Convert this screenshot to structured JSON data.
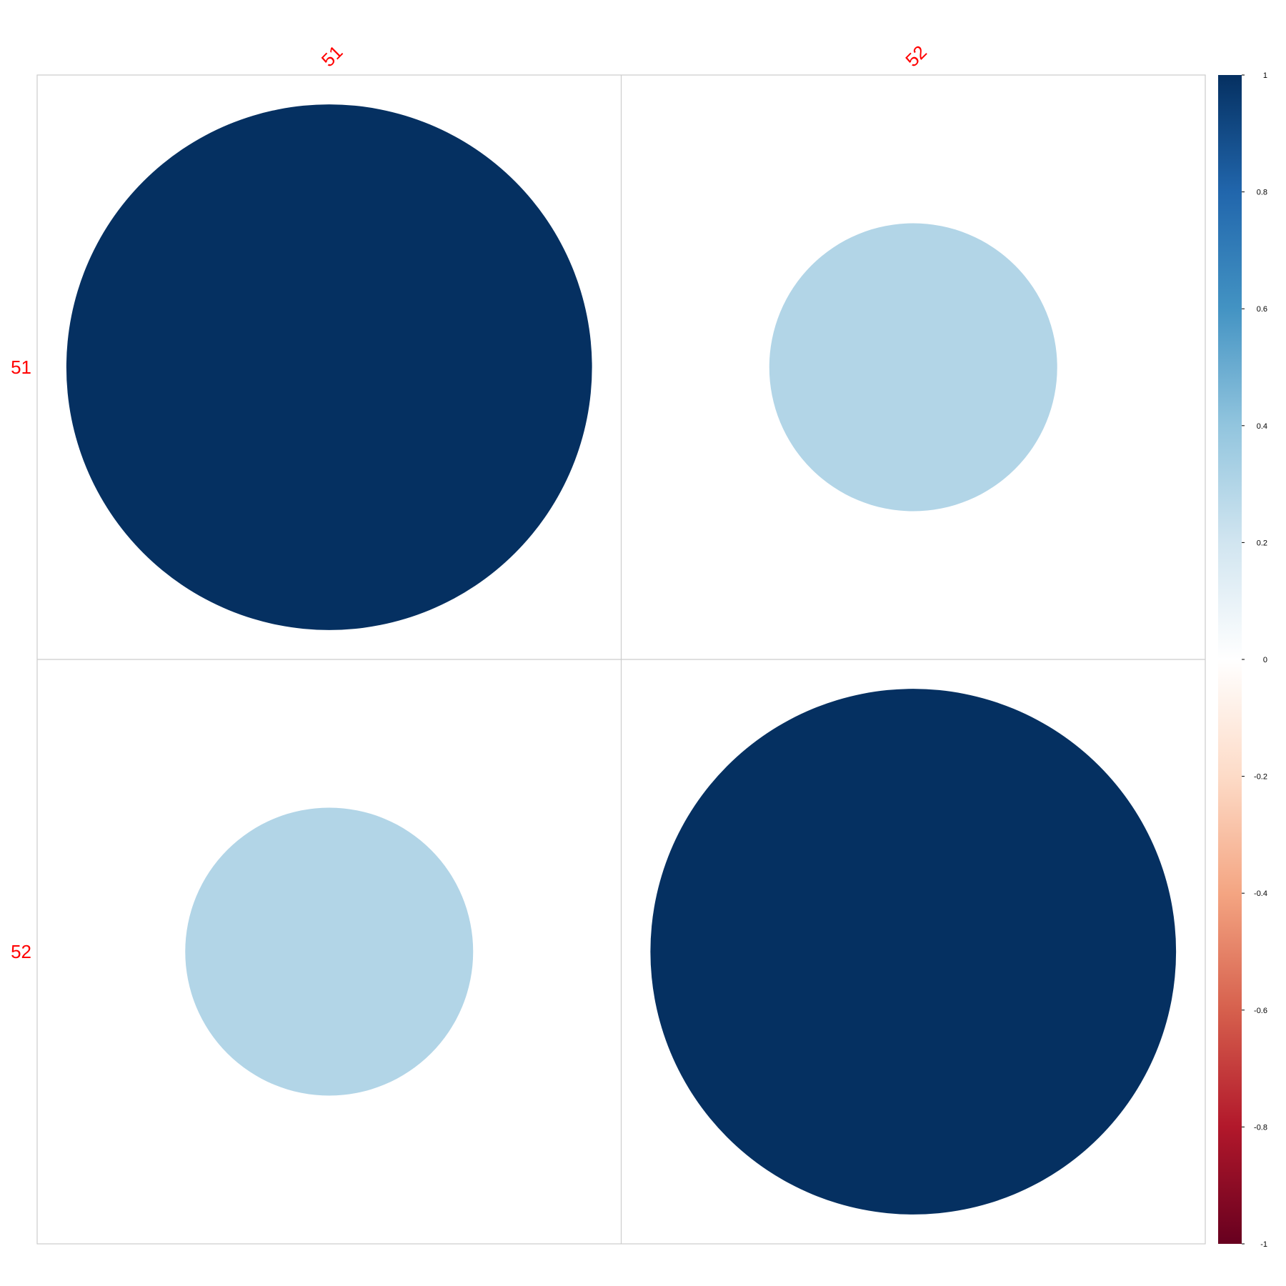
{
  "chart_data": {
    "type": "heatmap",
    "title": "",
    "xlabel": "",
    "ylabel": "",
    "categories": [
      "51",
      "52"
    ],
    "matrix": [
      [
        1,
        0.3
      ],
      [
        0.3,
        1
      ]
    ],
    "glyph": "circle",
    "label_color": "#ff0000",
    "colorbar": {
      "range": [
        -1,
        1
      ],
      "ticks": [
        "1",
        "0.8",
        "0.6",
        "0.4",
        "0.2",
        "0",
        "-0.2",
        "-0.4",
        "-0.6",
        "-0.8",
        "-1"
      ],
      "colors": [
        "#67001f",
        "#b2182b",
        "#d6604d",
        "#f4a582",
        "#fddbc7",
        "#ffffff",
        "#d1e5f0",
        "#92c5de",
        "#4393c3",
        "#2166ac",
        "#053061"
      ]
    }
  }
}
